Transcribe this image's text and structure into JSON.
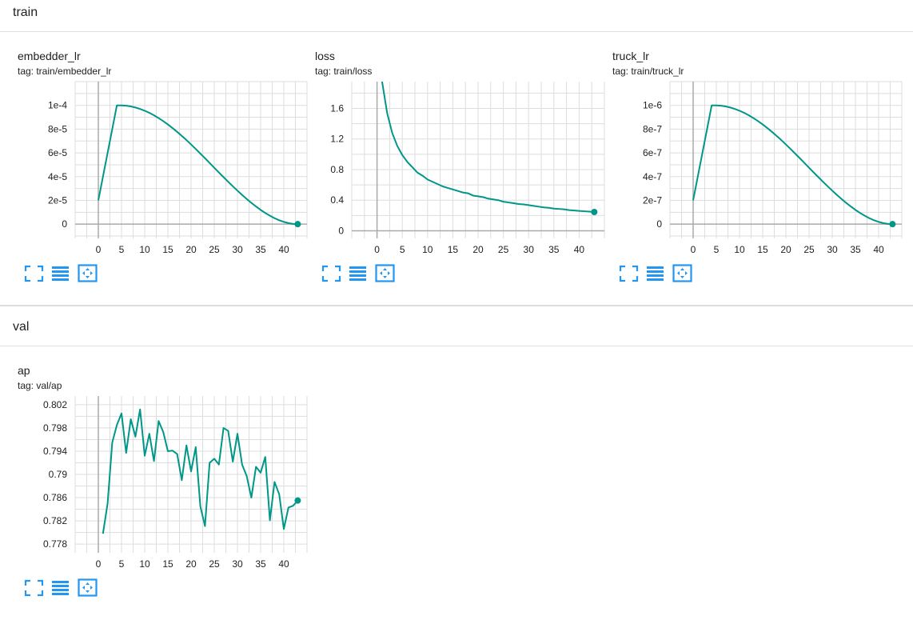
{
  "sections": {
    "train": {
      "title": "train"
    },
    "val": {
      "title": "val"
    }
  },
  "cards": [
    {
      "name": "embedder_lr",
      "tag": "tag: train/embedder_lr",
      "buttons": [
        "fullscreen-icon",
        "list-icon",
        "fit-domain-icon"
      ]
    },
    {
      "name": "loss",
      "tag": "tag: train/loss",
      "buttons": [
        "fullscreen-icon",
        "list-icon",
        "fit-domain-icon"
      ]
    },
    {
      "name": "truck_lr",
      "tag": "tag: train/truck_lr",
      "buttons": [
        "fullscreen-icon",
        "list-icon",
        "fit-domain-icon"
      ]
    },
    {
      "name": "ap",
      "tag": "tag: val/ap",
      "buttons": [
        "fullscreen-icon",
        "list-icon",
        "fit-domain-icon"
      ]
    }
  ],
  "colors": {
    "series": "#009688",
    "grid": "#dddddd",
    "axis": "#aaaaaa"
  },
  "chart_data": [
    {
      "type": "line",
      "series_name": "embedder_lr",
      "xlim": [
        -5,
        45
      ],
      "ylim": [
        -1.2e-05,
        0.00012
      ],
      "xticks": [
        0,
        5,
        10,
        15,
        20,
        25,
        30,
        35,
        40
      ],
      "xtick_labels": [
        "0",
        "5",
        "10",
        "15",
        "20",
        "25",
        "30",
        "35",
        "40"
      ],
      "yticks": [
        0,
        2e-05,
        4e-05,
        6e-05,
        8e-05,
        0.0001
      ],
      "ytick_labels": [
        "0",
        "2e-5",
        "4e-5",
        "6e-5",
        "8e-5",
        "1e-4"
      ],
      "x": [
        0,
        1,
        2,
        3,
        4,
        5,
        6,
        7,
        8,
        9,
        10,
        11,
        12,
        13,
        14,
        15,
        16,
        17,
        18,
        19,
        20,
        21,
        22,
        23,
        24,
        25,
        26,
        27,
        28,
        29,
        30,
        31,
        32,
        33,
        34,
        35,
        36,
        37,
        38,
        39,
        40,
        41,
        42,
        43
      ],
      "y": [
        2e-05,
        4e-05,
        6e-05,
        8e-05,
        0.0001,
        0.0001,
        9.97e-05,
        9.91e-05,
        9.82e-05,
        9.7e-05,
        9.55e-05,
        9.37e-05,
        9.16e-05,
        8.93e-05,
        8.67e-05,
        8.39e-05,
        8.09e-05,
        7.77e-05,
        7.43e-05,
        7.08e-05,
        6.71e-05,
        6.33e-05,
        5.94e-05,
        5.55e-05,
        5.15e-05,
        4.75e-05,
        4.35e-05,
        3.96e-05,
        3.57e-05,
        3.19e-05,
        2.82e-05,
        2.46e-05,
        2.12e-05,
        1.79e-05,
        1.49e-05,
        1.2e-05,
        9.4e-06,
        7.1e-06,
        5e-06,
        3.3e-06,
        1.9e-06,
        9e-07,
        2e-07,
        2e-08
      ]
    },
    {
      "type": "line",
      "series_name": "loss",
      "xlim": [
        -5,
        45
      ],
      "ylim": [
        -0.1,
        1.95
      ],
      "xticks": [
        0,
        5,
        10,
        15,
        20,
        25,
        30,
        35,
        40
      ],
      "xtick_labels": [
        "0",
        "5",
        "10",
        "15",
        "20",
        "25",
        "30",
        "35",
        "40"
      ],
      "yticks": [
        0,
        0.4,
        0.8,
        1.2,
        1.6
      ],
      "ytick_labels": [
        "0",
        "0.4",
        "0.8",
        "1.2",
        "1.6"
      ],
      "x": [
        1,
        2,
        3,
        4,
        5,
        6,
        7,
        8,
        9,
        10,
        11,
        12,
        13,
        14,
        15,
        16,
        17,
        18,
        19,
        20,
        21,
        22,
        23,
        24,
        25,
        26,
        27,
        28,
        29,
        30,
        31,
        32,
        33,
        34,
        35,
        36,
        37,
        38,
        39,
        40,
        41,
        42,
        43
      ],
      "y": [
        1.95,
        1.54,
        1.28,
        1.11,
        0.99,
        0.9,
        0.83,
        0.76,
        0.72,
        0.67,
        0.64,
        0.61,
        0.58,
        0.56,
        0.54,
        0.52,
        0.5,
        0.49,
        0.46,
        0.45,
        0.44,
        0.42,
        0.41,
        0.4,
        0.38,
        0.37,
        0.36,
        0.35,
        0.345,
        0.335,
        0.325,
        0.315,
        0.305,
        0.3,
        0.29,
        0.285,
        0.28,
        0.27,
        0.265,
        0.26,
        0.255,
        0.25,
        0.245
      ]
    },
    {
      "type": "line",
      "series_name": "truck_lr",
      "xlim": [
        -5,
        45
      ],
      "ylim": [
        -1.2e-07,
        1.2e-06
      ],
      "xticks": [
        0,
        5,
        10,
        15,
        20,
        25,
        30,
        35,
        40
      ],
      "xtick_labels": [
        "0",
        "5",
        "10",
        "15",
        "20",
        "25",
        "30",
        "35",
        "40"
      ],
      "yticks": [
        0,
        2e-07,
        4e-07,
        6e-07,
        8e-07,
        1e-06
      ],
      "ytick_labels": [
        "0",
        "2e-7",
        "4e-7",
        "6e-7",
        "8e-7",
        "1e-6"
      ],
      "x": [
        0,
        1,
        2,
        3,
        4,
        5,
        6,
        7,
        8,
        9,
        10,
        11,
        12,
        13,
        14,
        15,
        16,
        17,
        18,
        19,
        20,
        21,
        22,
        23,
        24,
        25,
        26,
        27,
        28,
        29,
        30,
        31,
        32,
        33,
        34,
        35,
        36,
        37,
        38,
        39,
        40,
        41,
        42,
        43
      ],
      "y": [
        2e-07,
        4e-07,
        6e-07,
        8e-07,
        1e-06,
        1e-06,
        9.97e-07,
        9.91e-07,
        9.82e-07,
        9.7e-07,
        9.55e-07,
        9.37e-07,
        9.16e-07,
        8.93e-07,
        8.67e-07,
        8.39e-07,
        8.09e-07,
        7.77e-07,
        7.43e-07,
        7.08e-07,
        6.71e-07,
        6.33e-07,
        5.94e-07,
        5.55e-07,
        5.15e-07,
        4.75e-07,
        4.35e-07,
        3.96e-07,
        3.57e-07,
        3.19e-07,
        2.82e-07,
        2.46e-07,
        2.12e-07,
        1.79e-07,
        1.49e-07,
        1.2e-07,
        9.4e-08,
        7.1e-08,
        5e-08,
        3.3e-08,
        1.9e-08,
        9e-09,
        2e-09,
        2e-10
      ]
    },
    {
      "type": "line",
      "series_name": "ap",
      "xlim": [
        -5,
        45
      ],
      "ylim": [
        0.7765,
        0.8035
      ],
      "xticks": [
        0,
        5,
        10,
        15,
        20,
        25,
        30,
        35,
        40
      ],
      "xtick_labels": [
        "0",
        "5",
        "10",
        "15",
        "20",
        "25",
        "30",
        "35",
        "40"
      ],
      "yticks": [
        0.778,
        0.782,
        0.786,
        0.79,
        0.794,
        0.798,
        0.802
      ],
      "ytick_labels": [
        "0.778",
        "0.782",
        "0.786",
        "0.79",
        "0.794",
        "0.798",
        "0.802"
      ],
      "x": [
        1,
        2,
        3,
        4,
        5,
        6,
        7,
        8,
        9,
        10,
        11,
        12,
        13,
        14,
        15,
        16,
        17,
        18,
        19,
        20,
        21,
        22,
        23,
        24,
        25,
        26,
        27,
        28,
        29,
        30,
        31,
        32,
        33,
        34,
        35,
        36,
        37,
        38,
        39,
        40,
        41,
        42,
        43
      ],
      "y": [
        0.7798,
        0.785,
        0.7955,
        0.7985,
        0.8005,
        0.7937,
        0.7995,
        0.7965,
        0.8012,
        0.7932,
        0.797,
        0.7923,
        0.7992,
        0.7973,
        0.794,
        0.7941,
        0.7935,
        0.789,
        0.795,
        0.7905,
        0.7947,
        0.7845,
        0.7811,
        0.792,
        0.7927,
        0.7917,
        0.798,
        0.7975,
        0.7922,
        0.797,
        0.7917,
        0.7897,
        0.786,
        0.7913,
        0.7903,
        0.793,
        0.7821,
        0.7887,
        0.7866,
        0.7806,
        0.7843,
        0.7846,
        0.7855
      ]
    }
  ]
}
